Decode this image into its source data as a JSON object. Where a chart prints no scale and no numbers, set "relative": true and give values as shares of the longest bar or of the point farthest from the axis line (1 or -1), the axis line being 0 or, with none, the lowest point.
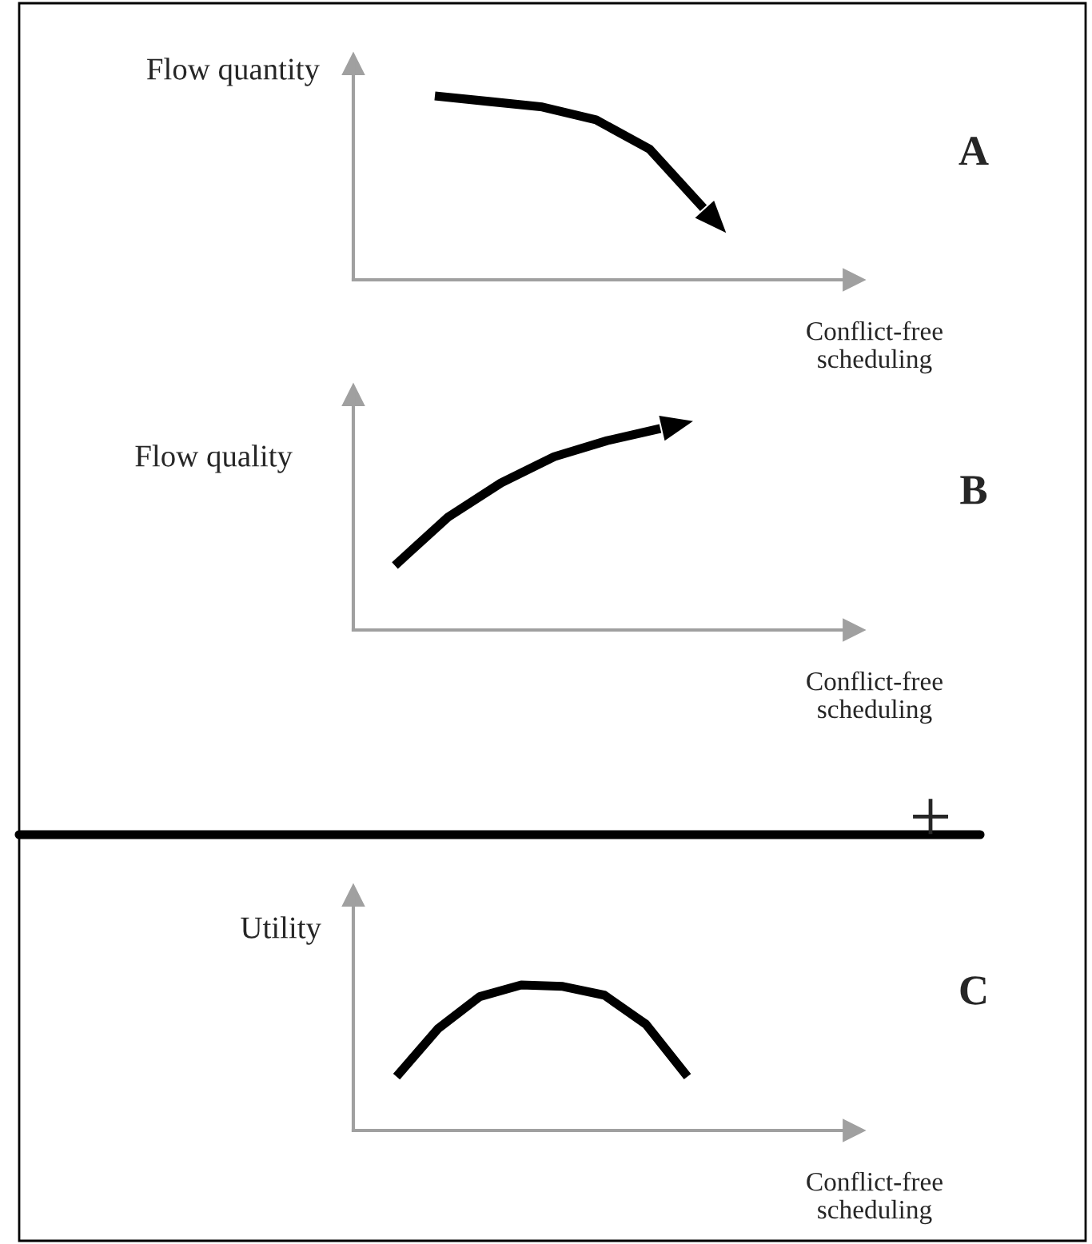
{
  "chart_data": [
    {
      "type": "line",
      "relative": true,
      "ylabel": "Flow quantity",
      "xlabel": "Conflict-free\nscheduling",
      "categories": [
        null,
        null,
        null,
        null,
        null,
        null
      ],
      "series": [
        {
          "color": "#000000",
          "values": [
            1,
            0.97,
            0.94,
            0.87,
            0.71,
            0.39
          ]
        }
      ],
      "annotations": [
        "A"
      ]
    },
    {
      "type": "line",
      "relative": true,
      "ylabel": "Flow quality",
      "xlabel": "Conflict-free\nscheduling",
      "categories": [
        null,
        null,
        null,
        null,
        null,
        null
      ],
      "series": [
        {
          "color": "#000000",
          "values": [
            0.32,
            0.56,
            0.73,
            0.86,
            0.94,
            1
          ]
        }
      ],
      "annotations": [
        "B",
        "+"
      ]
    },
    {
      "type": "line",
      "relative": true,
      "ylabel": "Utility",
      "xlabel": "Conflict-free\nscheduling",
      "categories": [
        null,
        null,
        null,
        null,
        null,
        null,
        null,
        null
      ],
      "series": [
        {
          "color": "#000000",
          "values": [
            0.37,
            0.7,
            0.92,
            1,
            0.99,
            0.93,
            0.73,
            0.37
          ]
        }
      ],
      "annotations": [
        "C"
      ]
    }
  ]
}
